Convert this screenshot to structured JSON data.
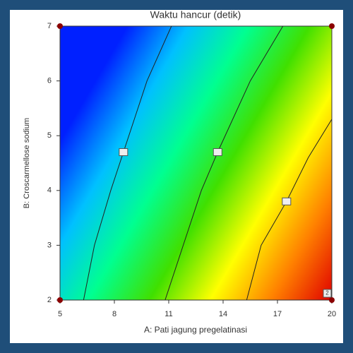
{
  "chart_data": {
    "type": "contour",
    "title": "Waktu hancur (detik)",
    "x_label": "A: Pati jagung pregelatinasi",
    "y_label": "B: Croscarmellose sodium",
    "xlim": [
      5,
      20
    ],
    "xticks": [
      5,
      8,
      11,
      14,
      17,
      20
    ],
    "ylim": [
      2,
      7
    ],
    "yticks": [
      2,
      3,
      4,
      5,
      6,
      7
    ],
    "contours": [
      {
        "x": [
          6.3,
          6.9,
          7.8,
          8.5,
          9.8,
          11.15
        ],
        "y": [
          2,
          3,
          4,
          4.7,
          6,
          7
        ]
      },
      {
        "x": [
          10.8,
          11.8,
          12.8,
          13.7,
          15.5,
          17.3
        ],
        "y": [
          2,
          3,
          4,
          4.7,
          6,
          7
        ]
      },
      {
        "x": [
          15.3,
          16.1,
          17.5,
          18.7,
          20
        ],
        "y": [
          2,
          3,
          3.8,
          4.6,
          5.3
        ]
      }
    ],
    "points": {
      "x": [
        5,
        5,
        20,
        20
      ],
      "y": [
        2,
        7,
        7,
        2
      ],
      "color": "#8b0000"
    },
    "annotations": [
      {
        "text": "2",
        "x": 20,
        "y": 2
      }
    ],
    "colors": [
      "#0020ff",
      "#00c0ff",
      "#00ff90",
      "#40e000",
      "#ffff00",
      "#ff8000",
      "#e00000"
    ]
  }
}
